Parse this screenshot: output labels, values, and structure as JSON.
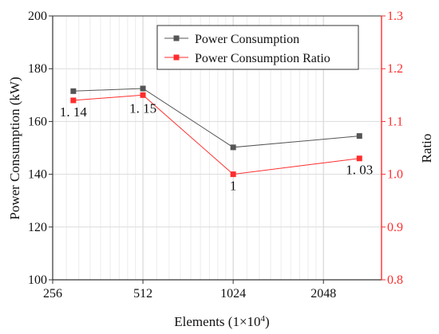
{
  "chart_data": {
    "type": "line",
    "title": "",
    "xlabel": "Elements (1×10⁴)",
    "x_tick_labels": [
      "256",
      "512",
      "1024",
      "2048"
    ],
    "x_ticks_log2": [
      256,
      512,
      1024,
      2048
    ],
    "xlim_log2": [
      256,
      3200
    ],
    "left_axis": {
      "label": "Power Consumption (kW)",
      "ylim": [
        100,
        200
      ],
      "ticks": [
        "100",
        "120",
        "140",
        "160",
        "180",
        "200"
      ]
    },
    "right_axis": {
      "label": "Ratio",
      "ylim": [
        0.8,
        1.3
      ],
      "ticks": [
        "0.8",
        "0.9",
        "1.0",
        "1.1",
        "1.2",
        "1.3"
      ],
      "color": "#ff2d2d"
    },
    "x": [
      300,
      512,
      1024,
      2700
    ],
    "series": [
      {
        "name": "Power Consumption",
        "axis": "left",
        "color": "#555555",
        "values": [
          171.5,
          172.5,
          150.2,
          154.5
        ]
      },
      {
        "name": "Power Consumption Ratio",
        "axis": "right",
        "color": "#ff2d2d",
        "values": [
          1.14,
          1.15,
          1.0,
          1.03
        ],
        "data_labels": [
          "1.14",
          "1.15",
          "1",
          "1.03"
        ]
      }
    ],
    "grid": true,
    "legend_position": "top-right"
  }
}
